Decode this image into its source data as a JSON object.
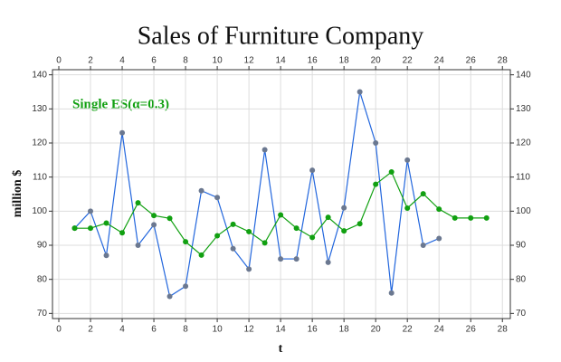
{
  "chart_data": {
    "type": "line",
    "title": "Sales of Furniture Company",
    "x_label": "t",
    "y_label": "million $",
    "annotation": "Single ES(α=0.3)",
    "xlim": [
      -0.4,
      28.5
    ],
    "xticks": [
      0,
      2,
      4,
      6,
      8,
      10,
      12,
      14,
      16,
      18,
      20,
      22,
      24,
      26,
      28
    ],
    "ylim": [
      68.5,
      141.5
    ],
    "yticks": [
      70,
      80,
      90,
      100,
      110,
      120,
      130,
      140
    ],
    "grid": true,
    "series": [
      {
        "color": "#2266dd",
        "marker_color": "#6b7890",
        "x": [
          1,
          2,
          3,
          4,
          5,
          6,
          7,
          8,
          9,
          10,
          11,
          12,
          13,
          14,
          15,
          16,
          17,
          18,
          19,
          20,
          21,
          22,
          23,
          24
        ],
        "values": [
          95,
          100,
          87,
          123,
          90,
          96,
          75,
          78,
          106,
          104,
          89,
          83,
          118,
          86,
          86,
          112,
          85,
          101,
          135,
          120,
          76,
          115,
          90,
          92
        ]
      },
      {
        "color": "#11a011",
        "marker_color": "#11a011",
        "x": [
          1,
          2,
          3,
          4,
          5,
          6,
          7,
          8,
          9,
          10,
          11,
          12,
          13,
          14,
          15,
          16,
          17,
          18,
          19,
          20,
          21,
          22,
          23,
          24,
          25,
          26,
          27
        ],
        "values": [
          95,
          95,
          96.5,
          93.65,
          102.46,
          98.72,
          97.9,
          91.03,
          87.12,
          92.78,
          96.15,
          94,
          90.7,
          98.89,
          95.02,
          92.3,
          98.2,
          94.2,
          96.3,
          107.9,
          111.5,
          100.9,
          105.1,
          100.6,
          98,
          98,
          98
        ]
      }
    ]
  }
}
